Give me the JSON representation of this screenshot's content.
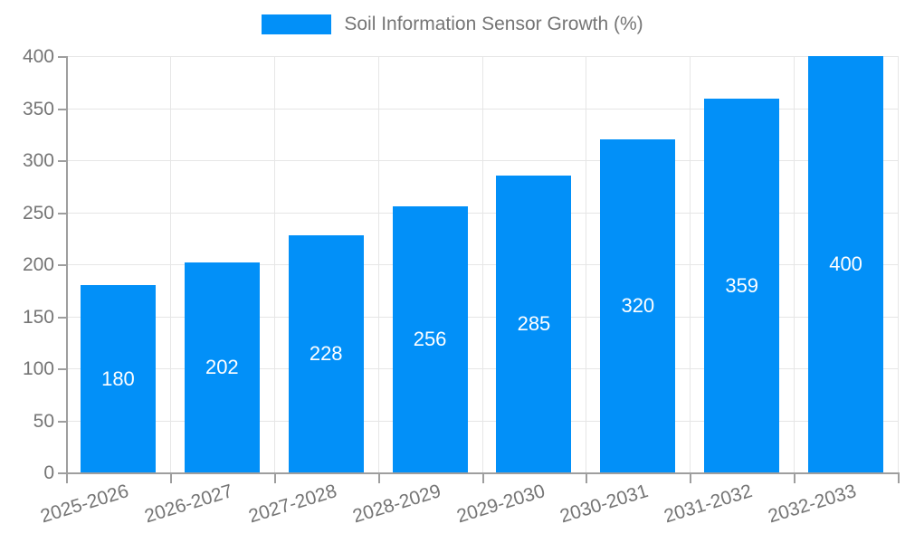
{
  "legend": {
    "label": "Soil Information Sensor Growth (%)"
  },
  "chart_data": {
    "type": "bar",
    "title": "Soil Information Sensor Growth (%)",
    "categories": [
      "2025-2026",
      "2026-2027",
      "2027-2028",
      "2028-2029",
      "2029-2030",
      "2030-2031",
      "2031-2032",
      "2032-2033"
    ],
    "values": [
      180,
      202,
      228,
      256,
      285,
      320,
      359,
      400
    ],
    "bar_value_labels": [
      "180",
      "202",
      "228",
      "256",
      "285",
      "320",
      "359",
      "400"
    ],
    "xlabel": "",
    "ylabel": "",
    "ylim": [
      0,
      400
    ],
    "ytick_values": [
      0,
      50,
      100,
      150,
      200,
      250,
      300,
      350,
      400
    ],
    "grid": "on",
    "legend_position": "top-center",
    "colors": {
      "bar": "#0290f8",
      "bar_label_text": "#ffffff",
      "axis_text": "#757575",
      "axis_line": "#9e9e9e",
      "gridline": "#e6e6e6",
      "background": "#ffffff"
    }
  }
}
